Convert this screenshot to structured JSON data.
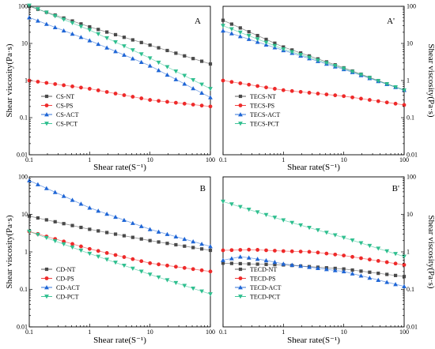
{
  "chart_data": [
    {
      "type": "line",
      "panel_letter": "A",
      "xlabel": "Shear rate(S⁻¹)",
      "ylabel": "Shear viscosity(Pa·s)",
      "x_scale": "log",
      "y_scale": "log",
      "xlim": [
        0.1,
        100
      ],
      "ylim": [
        0.01,
        100
      ],
      "x_ticks": [
        "0.1",
        "1",
        "10",
        "100"
      ],
      "y_ticks": [
        "0.01",
        "0.1",
        "1",
        "10",
        "100"
      ],
      "legend_position": "bottom-left",
      "series": [
        {
          "name": "CS-NT",
          "color": "#4a4a4a",
          "marker": "square",
          "x": [
            0.1,
            1,
            10,
            100
          ],
          "y": [
            100,
            28,
            9,
            2.8
          ]
        },
        {
          "name": "CS-PS",
          "color": "#ee2a2a",
          "marker": "circle",
          "x": [
            0.1,
            1,
            10,
            100
          ],
          "y": [
            1.0,
            0.6,
            0.3,
            0.2
          ]
        },
        {
          "name": "CS-ACT",
          "color": "#1f66d6",
          "marker": "triangle-up",
          "x": [
            0.1,
            1,
            10,
            100
          ],
          "y": [
            50,
            12,
            2.5,
            0.35
          ]
        },
        {
          "name": "CS-PCT",
          "color": "#2fbf8f",
          "marker": "triangle-down",
          "x": [
            0.1,
            1,
            10,
            100
          ],
          "y": [
            105,
            23,
            4,
            0.6
          ]
        }
      ]
    },
    {
      "type": "line",
      "panel_letter": "A'",
      "xlabel": "Shear rate(S⁻¹)",
      "ylabel": "Shear viscosity(Pa·s)",
      "x_scale": "log",
      "y_scale": "log",
      "xlim": [
        0.1,
        100
      ],
      "ylim": [
        0.01,
        100
      ],
      "x_ticks": [
        "0.1",
        "1",
        "10",
        "100"
      ],
      "y_ticks": [
        "0.01",
        "0.1",
        "1",
        "10",
        "100"
      ],
      "legend_position": "bottom-left",
      "series": [
        {
          "name": "TECS-NT",
          "color": "#4a4a4a",
          "marker": "square",
          "x": [
            0.1,
            1,
            10,
            100
          ],
          "y": [
            42,
            8,
            2.2,
            0.55
          ]
        },
        {
          "name": "TECS-PS",
          "color": "#ee2a2a",
          "marker": "circle",
          "x": [
            0.1,
            1,
            10,
            100
          ],
          "y": [
            1.0,
            0.55,
            0.38,
            0.22
          ]
        },
        {
          "name": "TECS-ACT",
          "color": "#1f66d6",
          "marker": "triangle-up",
          "x": [
            0.1,
            1,
            10,
            100
          ],
          "y": [
            22,
            6.5,
            2.0,
            0.55
          ]
        },
        {
          "name": "TECS-PCT",
          "color": "#2fbf8f",
          "marker": "triangle-down",
          "x": [
            0.1,
            1,
            10,
            100
          ],
          "y": [
            30,
            7,
            2.1,
            0.55
          ]
        }
      ]
    },
    {
      "type": "line",
      "panel_letter": "B",
      "xlabel": "Shear rate(S⁻¹)",
      "ylabel": "Shear viscosity(Pa·s)",
      "x_scale": "log",
      "y_scale": "log",
      "xlim": [
        0.1,
        100
      ],
      "ylim": [
        0.01,
        100
      ],
      "x_ticks": [
        "0.1",
        "1",
        "10",
        "100"
      ],
      "y_ticks": [
        "0.01",
        "0.1",
        "1",
        "10",
        "100"
      ],
      "legend_position": "bottom-left",
      "series": [
        {
          "name": "CD-NT",
          "color": "#4a4a4a",
          "marker": "square",
          "x": [
            0.1,
            1,
            10,
            100
          ],
          "y": [
            9,
            4,
            2,
            1.1
          ]
        },
        {
          "name": "CD-PS",
          "color": "#ee2a2a",
          "marker": "circle",
          "x": [
            0.1,
            1,
            10,
            100
          ],
          "y": [
            3.5,
            1.2,
            0.5,
            0.3
          ]
        },
        {
          "name": "CD-ACT",
          "color": "#1f66d6",
          "marker": "triangle-up",
          "x": [
            0.1,
            1,
            10,
            100
          ],
          "y": [
            80,
            15,
            4,
            1.4
          ]
        },
        {
          "name": "CD-PCT",
          "color": "#2fbf8f",
          "marker": "triangle-down",
          "x": [
            0.1,
            1,
            10,
            100
          ],
          "y": [
            3.5,
            0.9,
            0.25,
            0.075
          ]
        }
      ]
    },
    {
      "type": "line",
      "panel_letter": "B'",
      "xlabel": "Shear rate(S⁻¹)",
      "ylabel": "Shear viscosity(Pa·s)",
      "x_scale": "log",
      "y_scale": "log",
      "xlim": [
        0.1,
        100
      ],
      "ylim": [
        0.01,
        100
      ],
      "x_ticks": [
        "0.1",
        "1",
        "10",
        "100"
      ],
      "y_ticks": [
        "0.01",
        "0.1",
        "1",
        "10",
        "100"
      ],
      "legend_position": "bottom-left",
      "series": [
        {
          "name": "TECD-NT",
          "color": "#4a4a4a",
          "marker": "square",
          "x": [
            0.1,
            1,
            10,
            100
          ],
          "y": [
            0.5,
            0.45,
            0.35,
            0.22
          ]
        },
        {
          "name": "TECD-PS",
          "color": "#ee2a2a",
          "marker": "circle",
          "x": [
            0.1,
            0.3,
            1,
            3,
            10,
            100
          ],
          "y": [
            1.1,
            1.15,
            1.05,
            1.0,
            0.8,
            0.45
          ]
        },
        {
          "name": "TECD-ACT",
          "color": "#1f66d6",
          "marker": "triangle-up",
          "x": [
            0.1,
            0.2,
            0.5,
            1,
            10,
            100
          ],
          "y": [
            0.6,
            0.75,
            0.6,
            0.48,
            0.3,
            0.12
          ]
        },
        {
          "name": "TECD-PCT",
          "color": "#2fbf8f",
          "marker": "triangle-down",
          "x": [
            0.1,
            1,
            10,
            100
          ],
          "y": [
            22,
            7,
            2.4,
            0.75
          ]
        }
      ]
    }
  ]
}
